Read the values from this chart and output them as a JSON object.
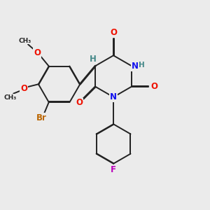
{
  "bg_color": "#ebebeb",
  "bond_color": "#222222",
  "bond_lw": 1.4,
  "dbo": 0.018,
  "atom_colors": {
    "O": "#ee1100",
    "N": "#1111ee",
    "Br": "#bb6600",
    "F": "#bb00bb",
    "H": "#448888",
    "C": "#222222"
  },
  "fs": 8.5
}
